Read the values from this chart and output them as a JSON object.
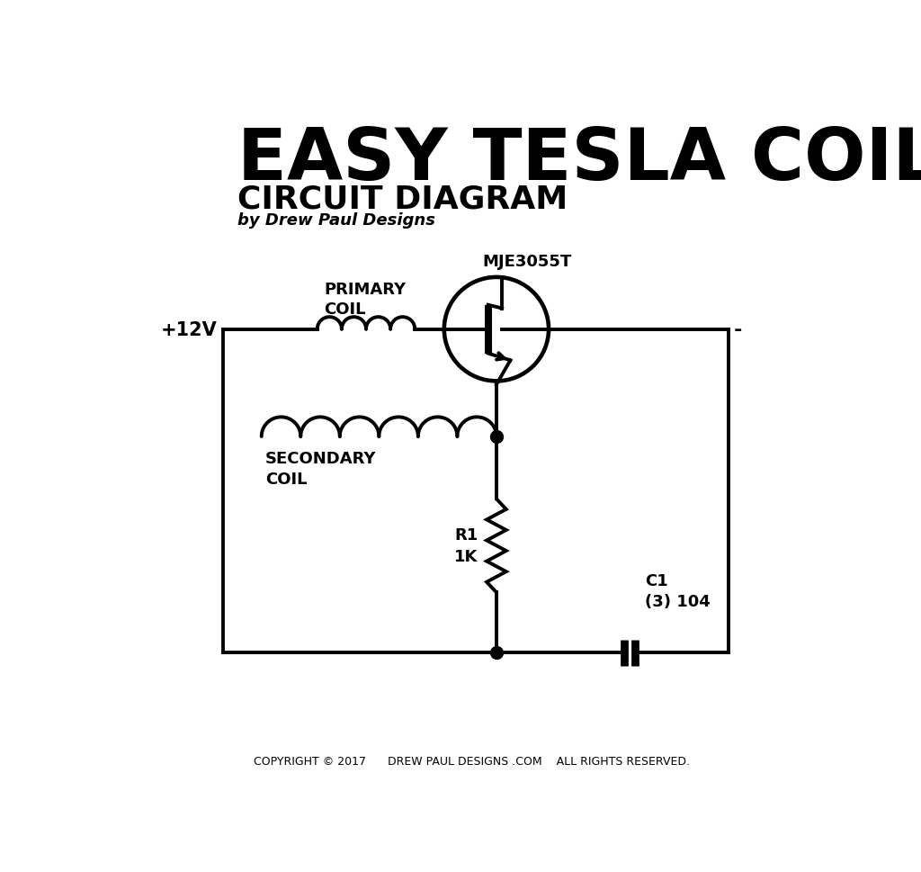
{
  "title": "EASY TESLA COIL",
  "subtitle": "CIRCUIT DIAGRAM",
  "byline": "by Drew Paul Designs",
  "copyright": "COPYRIGHT © 2017      DREW PAUL DESIGNS .COM    ALL RIGHTS RESERVED.",
  "label_plus12v": "+12V",
  "label_minus": "-",
  "label_primary_coil": "PRIMARY\nCOIL",
  "label_mje": "MJE3055T",
  "label_secondary_coil": "SECONDARY\nCOIL",
  "label_r1": "R1\n1K",
  "label_c1": "C1\n(3) 104",
  "bg_color": "#ffffff",
  "line_color": "#000000",
  "lw": 2.8,
  "title_fontsize": 58,
  "subtitle_fontsize": 26,
  "byline_fontsize": 13,
  "circuit_label_fontsize": 13,
  "component_label_fontsize": 13
}
